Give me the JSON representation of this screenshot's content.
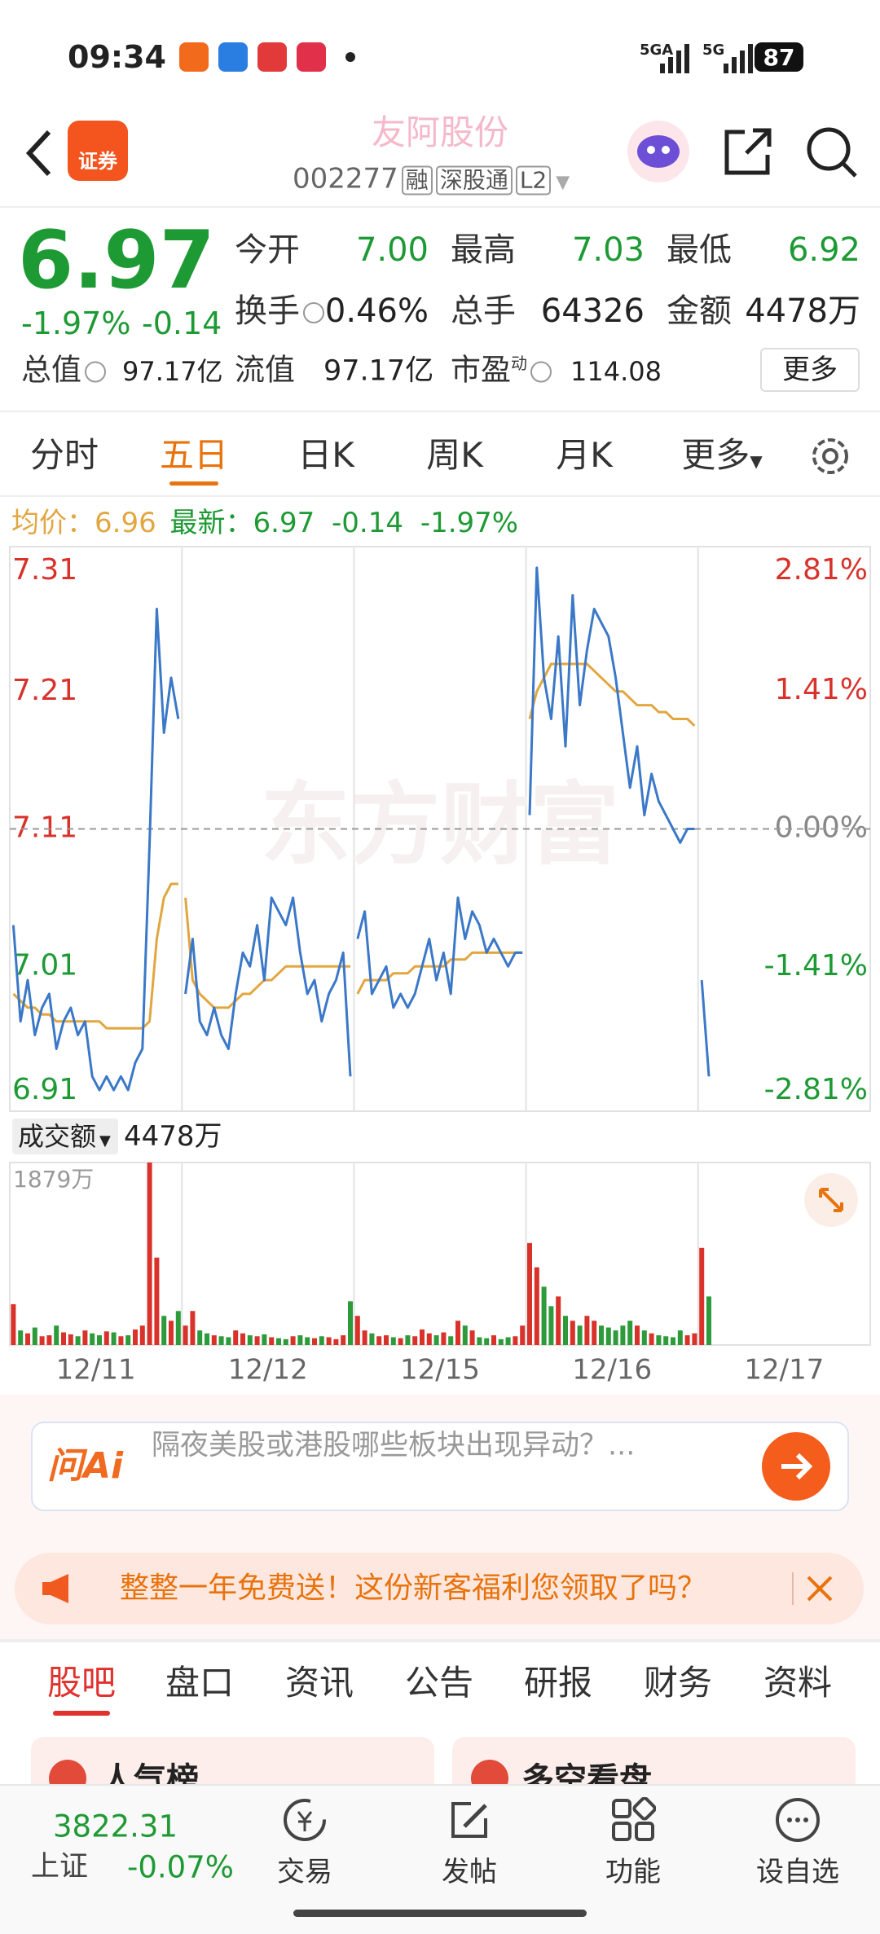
{
  "status_bar": {
    "time": "09:34",
    "signals": [
      "5GA",
      "5G"
    ],
    "battery": "87"
  },
  "header": {
    "logo": "证券",
    "title": "友阿股份",
    "code": "002277",
    "tags": [
      "融",
      "深股通",
      "L2"
    ]
  },
  "quote": {
    "price": "6.97",
    "change_pct": "-1.97%",
    "change": "-0.14",
    "stats": [
      [
        {
          "label": "今开",
          "value": "7.00"
        },
        {
          "label": "最高",
          "value": "7.03"
        },
        {
          "label": "最低",
          "value": "6.92"
        }
      ],
      [
        {
          "label": "换手",
          "value": "0.46%"
        },
        {
          "label": "总手",
          "value": "64326"
        },
        {
          "label": "金额",
          "value": "4478万"
        }
      ],
      [
        {
          "label": "总值",
          "value": "97.17亿"
        },
        {
          "label": "流值",
          "value": "97.17亿"
        },
        {
          "label": "市盈",
          "sup": "动",
          "value": "114.08"
        }
      ]
    ],
    "more": "更多"
  },
  "chart_tabs": [
    "分时",
    "五日",
    "日K",
    "周K",
    "月K",
    "更多"
  ],
  "chart_data": {
    "type": "line",
    "legend": {
      "avg_label": "均价：",
      "avg": "6.96",
      "latest_label": "最新：",
      "latest": "6.97",
      "change": "-0.14",
      "change_pct": "-1.97%"
    },
    "watermark": "东方财富",
    "ylim": [
      6.91,
      7.31
    ],
    "yticks": [
      6.91,
      7.01,
      7.11,
      7.21,
      7.31
    ],
    "y2lim": [
      -2.81,
      2.81
    ],
    "y2ticks": [
      {
        "value": -2.81,
        "label": "-2.81%"
      },
      {
        "value": -1.41,
        "label": "-1.41%"
      },
      {
        "value": 0,
        "label": "0.00%"
      },
      {
        "value": 1.41,
        "label": "1.41%"
      },
      {
        "value": 2.81,
        "label": "2.81%"
      }
    ],
    "price_color": "#3b78c8",
    "avg_color": "#e2a640",
    "days": [
      {
        "date": "12/11",
        "price": [
          7.04,
          6.97,
          7.0,
          6.96,
          6.98,
          6.99,
          6.95,
          6.97,
          6.98,
          6.96,
          6.97,
          6.93,
          6.92,
          6.93,
          6.92,
          6.93,
          6.92,
          6.94,
          6.95,
          7.1,
          7.27,
          7.18,
          7.22,
          7.19
        ],
        "avg": [
          6.99,
          6.985,
          6.98,
          6.98,
          6.975,
          6.975,
          6.97,
          6.97,
          6.97,
          6.97,
          6.97,
          6.97,
          6.97,
          6.965,
          6.965,
          6.965,
          6.965,
          6.965,
          6.965,
          6.97,
          7.03,
          7.06,
          7.07,
          7.07
        ],
        "volume": [
          420,
          150,
          120,
          180,
          90,
          100,
          200,
          130,
          110,
          90,
          150,
          120,
          100,
          140,
          130,
          90,
          100,
          160,
          200,
          1879,
          900,
          300,
          250,
          350
        ]
      },
      {
        "date": "12/12",
        "price": [
          6.99,
          7.03,
          6.97,
          6.96,
          6.98,
          6.96,
          6.95,
          6.99,
          7.02,
          7.01,
          7.04,
          7.0,
          7.06,
          7.05,
          7.04,
          7.06,
          7.02,
          6.99,
          7.0,
          6.97,
          6.99,
          7.0,
          7.02,
          6.93
        ],
        "avg": [
          7.06,
          7.0,
          6.99,
          6.985,
          6.98,
          6.98,
          6.98,
          6.985,
          6.99,
          6.99,
          6.995,
          7.0,
          7.0,
          7.005,
          7.01,
          7.01,
          7.01,
          7.01,
          7.01,
          7.01,
          7.01,
          7.01,
          7.01,
          7.01
        ],
        "volume": [
          200,
          350,
          150,
          120,
          100,
          90,
          80,
          150,
          120,
          100,
          90,
          110,
          80,
          70,
          60,
          90,
          100,
          80,
          70,
          90,
          80,
          60,
          100,
          450
        ]
      },
      {
        "date": "12/15",
        "price": [
          7.03,
          7.05,
          6.99,
          7.0,
          7.01,
          6.98,
          6.99,
          6.98,
          6.99,
          7.01,
          7.03,
          7.0,
          7.02,
          6.99,
          7.06,
          7.03,
          7.05,
          7.04,
          7.02,
          7.03,
          7.02,
          7.01,
          7.02,
          7.02
        ],
        "avg": [
          6.99,
          7.0,
          7.0,
          7.0,
          7.0,
          7.005,
          7.005,
          7.005,
          7.01,
          7.01,
          7.01,
          7.01,
          7.01,
          7.015,
          7.015,
          7.015,
          7.02,
          7.02,
          7.02,
          7.02,
          7.02,
          7.02,
          7.02,
          7.02
        ],
        "volume": [
          300,
          150,
          120,
          90,
          100,
          80,
          70,
          100,
          90,
          160,
          120,
          100,
          130,
          90,
          250,
          200,
          150,
          80,
          70,
          100,
          60,
          80,
          90,
          200
        ]
      },
      {
        "date": "12/16",
        "price": [
          7.12,
          7.3,
          7.22,
          7.19,
          7.25,
          7.17,
          7.28,
          7.2,
          7.24,
          7.27,
          7.26,
          7.25,
          7.22,
          7.18,
          7.14,
          7.17,
          7.12,
          7.15,
          7.13,
          7.12,
          7.11,
          7.1,
          7.11,
          7.11
        ],
        "avg": [
          7.19,
          7.21,
          7.22,
          7.23,
          7.23,
          7.23,
          7.23,
          7.23,
          7.23,
          7.225,
          7.22,
          7.215,
          7.21,
          7.21,
          7.205,
          7.2,
          7.2,
          7.2,
          7.195,
          7.195,
          7.19,
          7.19,
          7.19,
          7.185
        ],
        "volume": [
          1050,
          800,
          600,
          400,
          500,
          300,
          250,
          200,
          300,
          250,
          200,
          180,
          150,
          200,
          250,
          200,
          150,
          120,
          100,
          90,
          80,
          150,
          100,
          120
        ]
      },
      {
        "date": "12/17",
        "price": [
          7.0,
          6.93
        ],
        "avg": [
          null,
          null
        ],
        "volume": [
          1000,
          500
        ]
      }
    ],
    "volume": {
      "label": "成交额",
      "total": "4478万",
      "ylim": [
        0,
        1879
      ],
      "yticks": [
        {
          "value": 1879,
          "label": "1879万"
        }
      ],
      "up_color": "#d8322b",
      "down_color": "#2d9b3b"
    }
  },
  "ai": {
    "logo": "问Ai",
    "prompt": "隔夜美股或港股哪些板块出现异动？..."
  },
  "banner": {
    "text": "整整一年免费送！这份新客福利您领取了吗？"
  },
  "section_tabs": [
    "股吧",
    "盘口",
    "资讯",
    "公告",
    "研报",
    "财务",
    "资料"
  ],
  "cards": [
    "人气榜",
    "多空看盘"
  ],
  "bottom_nav": {
    "index_value": "3822.31",
    "index_name": "上证",
    "index_change": "-0.07%",
    "items": [
      "交易",
      "发帖",
      "功能",
      "设自选"
    ]
  }
}
